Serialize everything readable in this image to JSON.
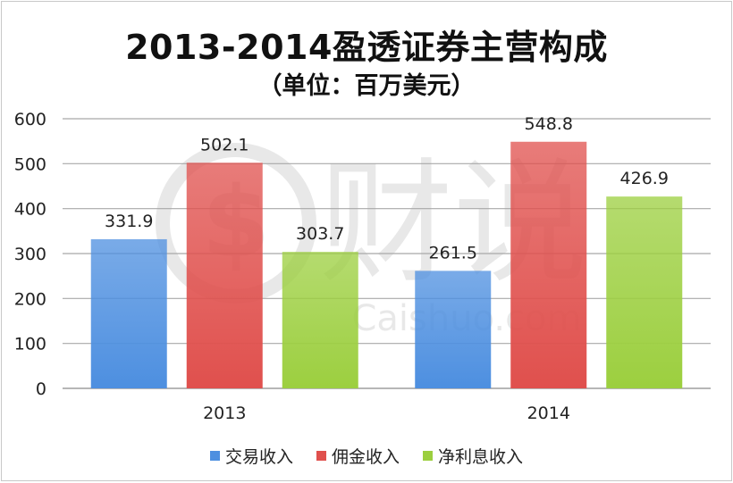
{
  "chart_data": {
    "type": "bar",
    "title": "2013-2014盈透证券主营构成",
    "subtitle": "（单位：百万美元）",
    "categories": [
      "2013",
      "2014"
    ],
    "series": [
      {
        "name": "交易收入",
        "values": [
          331.9,
          261.5
        ],
        "color": "#4d8fe0"
      },
      {
        "name": "佣金收入",
        "values": [
          502.1,
          548.8
        ],
        "color": "#e0504d"
      },
      {
        "name": "净利息收入",
        "values": [
          303.7,
          426.9
        ],
        "color": "#9ccf3f"
      }
    ],
    "data_labels": [
      [
        "331.9",
        "261.5"
      ],
      [
        "502.1",
        "548.8"
      ],
      [
        "303.7",
        "426.9"
      ]
    ],
    "yticks": [
      "0",
      "100",
      "200",
      "300",
      "400",
      "500",
      "600"
    ],
    "ylim": [
      0,
      600
    ],
    "grid": true,
    "legend_position": "bottom"
  },
  "watermark": {
    "text_cn": "财说",
    "text_en": "Caishuo.com"
  }
}
